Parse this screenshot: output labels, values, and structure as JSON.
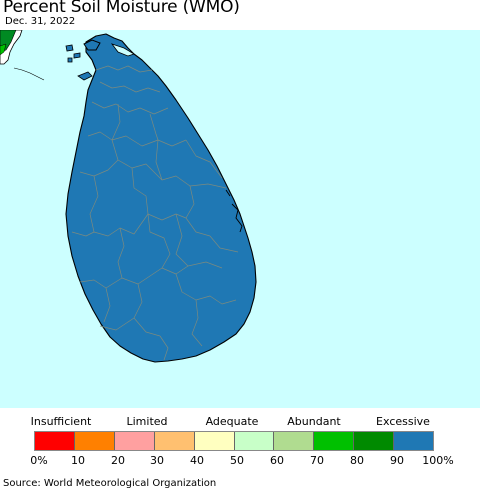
{
  "title": "Percent Soil Moisture (WMO)",
  "date": "Dec. 31, 2022",
  "colors": {
    "ocean": "#ccffff",
    "land_fill": "#1f78b4",
    "district_border": "#7a8a80",
    "coast": "#000000",
    "india_green": "#008a22",
    "india_bright_green": "#00c000",
    "india_land": "#ffffff"
  },
  "legend": {
    "categories": [
      {
        "label": "Insufficient"
      },
      {
        "label": "Limited"
      },
      {
        "label": "Adequate"
      },
      {
        "label": "Abundant"
      },
      {
        "label": "Excessive"
      }
    ],
    "bins": [
      {
        "range": "0-10%",
        "color": "#ff0000"
      },
      {
        "range": "10-20%",
        "color": "#ff8000"
      },
      {
        "range": "20-30%",
        "color": "#ffa0a0"
      },
      {
        "range": "30-40%",
        "color": "#ffc070"
      },
      {
        "range": "40-50%",
        "color": "#ffffc0"
      },
      {
        "range": "50-60%",
        "color": "#c8ffc8"
      },
      {
        "range": "60-70%",
        "color": "#b0dc90"
      },
      {
        "range": "70-80%",
        "color": "#00c000"
      },
      {
        "range": "80-90%",
        "color": "#008a00"
      },
      {
        "range": "90-100%",
        "color": "#1f78b4"
      }
    ],
    "ticks": [
      "0%",
      "10",
      "20",
      "30",
      "40",
      "50",
      "60",
      "70",
      "80",
      "90",
      "100%"
    ]
  },
  "source": "Source: World Meteorological Organization"
}
